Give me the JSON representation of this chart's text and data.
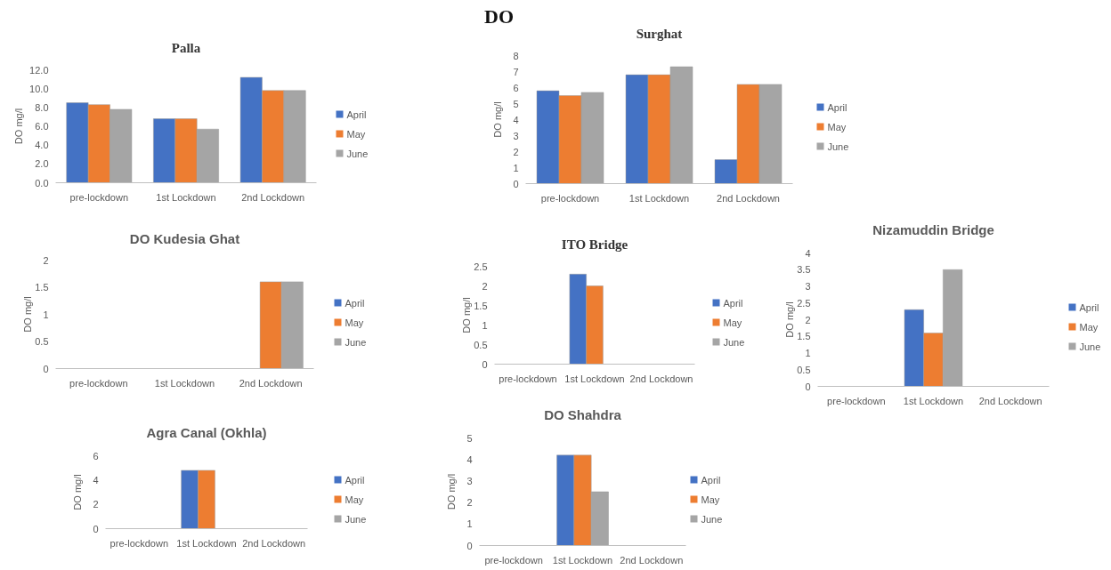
{
  "chart_data": [
    {
      "type": "other",
      "title": "DO"
    },
    {
      "type": "bar",
      "title": "Palla",
      "ylabel": "DO mg/l",
      "categories": [
        "pre-lockdown",
        "1st Lockdown",
        "2nd Lockdown"
      ],
      "ylim": [
        0,
        12
      ],
      "yticks": [
        {
          "value": 0,
          "label": "0.0"
        },
        {
          "value": 2,
          "label": "2.0"
        },
        {
          "value": 4,
          "label": "4.0"
        },
        {
          "value": 6,
          "label": "6.0"
        },
        {
          "value": 8,
          "label": "8.0"
        },
        {
          "value": 10,
          "label": "10.0"
        },
        {
          "value": 12,
          "label": "12.0"
        }
      ],
      "legend": "right",
      "grid": false,
      "series": [
        {
          "name": "April",
          "color": "#4472c4",
          "values": [
            8.5,
            6.8,
            11.2
          ]
        },
        {
          "name": "May",
          "color": "#ed7d31",
          "values": [
            8.3,
            6.8,
            9.8
          ]
        },
        {
          "name": "June",
          "color": "#a5a5a5",
          "values": [
            7.8,
            5.7,
            9.8
          ]
        }
      ]
    },
    {
      "type": "bar",
      "title": "Surghat",
      "ylabel": "DO mg/l",
      "categories": [
        "pre-lockdown",
        "1st Lockdown",
        "2nd Lockdown"
      ],
      "ylim": [
        0,
        8
      ],
      "yticks": [
        0,
        1,
        2,
        3,
        4,
        5,
        6,
        7,
        8
      ],
      "legend": "right",
      "grid": false,
      "series": [
        {
          "name": "April",
          "color": "#4472c4",
          "values": [
            5.8,
            6.8,
            1.5
          ]
        },
        {
          "name": "May",
          "color": "#ed7d31",
          "values": [
            5.5,
            6.8,
            6.2
          ]
        },
        {
          "name": "June",
          "color": "#a5a5a5",
          "values": [
            5.7,
            7.3,
            6.2
          ]
        }
      ]
    },
    {
      "type": "bar",
      "title": "DO Kudesia Ghat",
      "ylabel": "DO mg/l",
      "categories": [
        "pre-lockdown",
        "1st Lockdown",
        "2nd Lockdown"
      ],
      "ylim": [
        0,
        2
      ],
      "yticks": [
        0,
        0.5,
        1,
        1.5,
        2
      ],
      "legend": "right",
      "grid": false,
      "series": [
        {
          "name": "April",
          "color": "#4472c4",
          "values": [
            null,
            null,
            null
          ]
        },
        {
          "name": "May",
          "color": "#ed7d31",
          "values": [
            null,
            null,
            1.6
          ]
        },
        {
          "name": "June",
          "color": "#a5a5a5",
          "values": [
            null,
            null,
            1.6
          ]
        }
      ]
    },
    {
      "type": "bar",
      "title": "ITO Bridge",
      "ylabel": "DO mg/l",
      "categories": [
        "pre-lockdown",
        "1st Lockdown",
        "2nd Lockdown"
      ],
      "ylim": [
        0,
        2.5
      ],
      "yticks": [
        0,
        0.5,
        1,
        1.5,
        2,
        2.5
      ],
      "legend": "right",
      "grid": false,
      "series": [
        {
          "name": "April",
          "color": "#4472c4",
          "values": [
            null,
            2.3,
            null
          ]
        },
        {
          "name": "May",
          "color": "#ed7d31",
          "values": [
            null,
            2.0,
            null
          ]
        },
        {
          "name": "June",
          "color": "#a5a5a5",
          "values": [
            null,
            null,
            null
          ]
        }
      ]
    },
    {
      "type": "bar",
      "title": "Nizamuddin Bridge",
      "ylabel": "DO mg/l",
      "categories": [
        "pre-lockdown",
        "1st Lockdown",
        "2nd Lockdown"
      ],
      "ylim": [
        0,
        4
      ],
      "yticks": [
        0,
        0.5,
        1,
        1.5,
        2,
        2.5,
        3,
        3.5,
        4
      ],
      "legend": "right",
      "grid": false,
      "series": [
        {
          "name": "April",
          "color": "#4472c4",
          "values": [
            null,
            2.3,
            null
          ]
        },
        {
          "name": "May",
          "color": "#ed7d31",
          "values": [
            null,
            1.6,
            null
          ]
        },
        {
          "name": "June",
          "color": "#a5a5a5",
          "values": [
            null,
            3.5,
            null
          ]
        }
      ]
    },
    {
      "type": "bar",
      "title": "Agra Canal (Okhla)",
      "ylabel": "DO mg/l",
      "categories": [
        "pre-lockdown",
        "1st Lockdown",
        "2nd Lockdown"
      ],
      "ylim": [
        0,
        6
      ],
      "yticks": [
        0,
        2,
        4,
        6
      ],
      "legend": "right",
      "grid": false,
      "series": [
        {
          "name": "April",
          "color": "#4472c4",
          "values": [
            null,
            4.8,
            null
          ]
        },
        {
          "name": "May",
          "color": "#ed7d31",
          "values": [
            null,
            4.8,
            null
          ]
        },
        {
          "name": "June",
          "color": "#a5a5a5",
          "values": [
            null,
            null,
            null
          ]
        }
      ]
    },
    {
      "type": "bar",
      "title": "DO Shahdra",
      "ylabel": "DO mg/l",
      "categories": [
        "pre-lockdown",
        "1st Lockdown",
        "2nd Lockdown"
      ],
      "ylim": [
        0,
        5
      ],
      "yticks": [
        0,
        1,
        2,
        3,
        4,
        5
      ],
      "legend": "right",
      "grid": false,
      "series": [
        {
          "name": "April",
          "color": "#4472c4",
          "values": [
            null,
            4.2,
            null
          ]
        },
        {
          "name": "May",
          "color": "#ed7d31",
          "values": [
            null,
            4.2,
            null
          ]
        },
        {
          "name": "June",
          "color": "#a5a5a5",
          "values": [
            null,
            2.5,
            null
          ]
        }
      ]
    }
  ]
}
